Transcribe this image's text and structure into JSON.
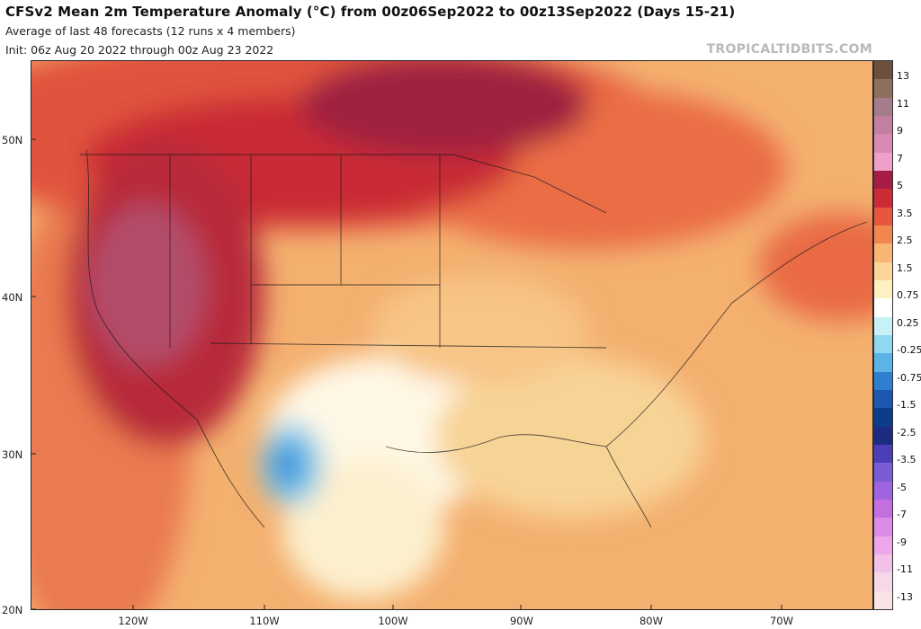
{
  "header": {
    "title": "CFSv2 Mean 2m Temperature Anomaly (°C) from 00z06Sep2022 to 00z13Sep2022 (Days 15-21)",
    "subtitle": "Average of last 48 forecasts (12 runs x 4 members)",
    "init": "Init: 06z Aug 20 2022 through 00z Aug 23 2022",
    "brand": "TROPICALTIDBITS.COM"
  },
  "map": {
    "lat_labels": [
      "50N",
      "40N",
      "30N",
      "20N"
    ],
    "lon_labels": [
      "120W",
      "110W",
      "100W",
      "90W",
      "80W",
      "70W"
    ]
  },
  "colorbar": {
    "labels": [
      "13",
      "11",
      "9",
      "7",
      "5",
      "3.5",
      "2.5",
      "1.5",
      "0.75",
      "0.25",
      "-0.25",
      "-0.75",
      "-1.5",
      "-2.5",
      "-3.5",
      "-5",
      "-7",
      "-9",
      "-11",
      "-13"
    ],
    "colors": [
      "#6e4f3f",
      "#8e6f5f",
      "#a67c8c",
      "#c17fa1",
      "#d98ab3",
      "#f0a0c8",
      "#a61c45",
      "#cc2a36",
      "#e8573d",
      "#f2874e",
      "#f8b574",
      "#fbd59a",
      "#fdf1c2",
      "#ffffff",
      "#c8f0f7",
      "#8fd8ef",
      "#5ab4e5",
      "#2f7fd0",
      "#1c57b0",
      "#0f3b8c",
      "#1c2c80",
      "#4b3fb8",
      "#7a5cd6",
      "#a065de",
      "#c46fe0",
      "#de8be8",
      "#eca6ea",
      "#f2c1e8",
      "#f6d8e8",
      "#f8e4e4"
    ]
  }
}
